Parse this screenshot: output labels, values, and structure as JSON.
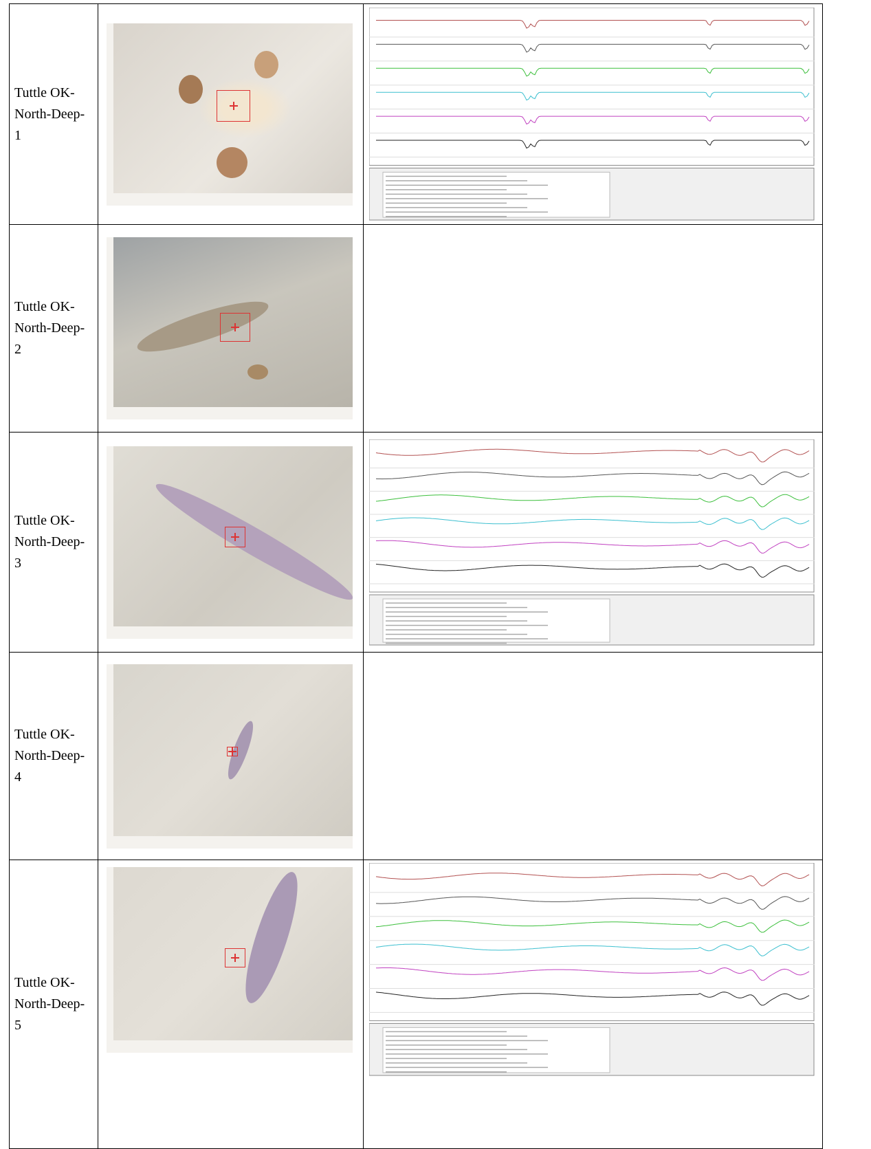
{
  "table": {
    "rows": [
      {
        "label": "Tuttle OK-North-Deep-1"
      },
      {
        "label": "Tuttle OK-North-Deep-2"
      },
      {
        "label": "Tuttle OK-North-Deep-3"
      },
      {
        "label": "Tuttle OK-North-Deep-4"
      },
      {
        "label": "Tuttle OK-North-Deep-5"
      }
    ]
  }
}
